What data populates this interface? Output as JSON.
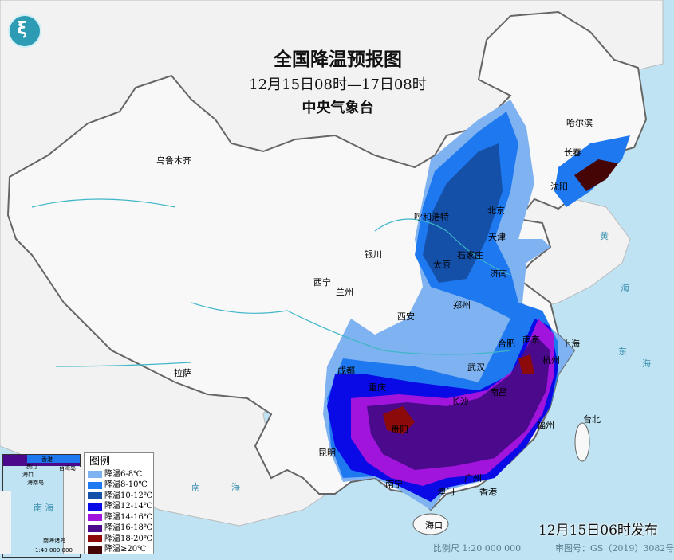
{
  "title": "全国降温预报图",
  "period": "12月15日08时—17日08时",
  "issuer": "中央气象台",
  "publish_time": "12月15日06时发布",
  "scale": "比例尺 1:20 000 000",
  "map_number": "审图号：GS（2019）3082号",
  "logo_icon": "cma-logo",
  "cities": [
    "乌鲁木齐",
    "哈尔滨",
    "长春",
    "沈阳",
    "北京",
    "天津",
    "呼和浩特",
    "石家庄",
    "太原",
    "银川",
    "济南",
    "西宁",
    "兰州",
    "郑州",
    "西安",
    "合肥",
    "南京",
    "上海",
    "杭州",
    "武汉",
    "成都",
    "重庆",
    "长沙",
    "南昌",
    "贵阳",
    "福州",
    "台北",
    "昆明",
    "拉萨",
    "南宁",
    "广州",
    "香港",
    "澳门",
    "海口"
  ],
  "legend": {
    "title": "图例",
    "items": [
      {
        "label": "降温6-8℃",
        "color": "#7fb2f0"
      },
      {
        "label": "降温8-10℃",
        "color": "#1e78f0"
      },
      {
        "label": "降温10-12℃",
        "color": "#1450a8"
      },
      {
        "label": "降温12-14℃",
        "color": "#0a0ae6"
      },
      {
        "label": "降温14-16℃",
        "color": "#a014dc"
      },
      {
        "label": "降温16-18℃",
        "color": "#4b0a8c"
      },
      {
        "label": "降温18-20℃",
        "color": "#8c0a0a"
      },
      {
        "label": "降温≥20℃",
        "color": "#460505"
      }
    ]
  },
  "inset": {
    "sea_label": "南 海",
    "island_label": "南海诸岛",
    "scale": "1:40 000 000",
    "labels": [
      "海口",
      "海南岛",
      "澳门",
      "香港",
      "台湾岛"
    ]
  },
  "sea_labels": [
    "黄",
    "海",
    "东",
    "海",
    "南",
    "海"
  ]
}
